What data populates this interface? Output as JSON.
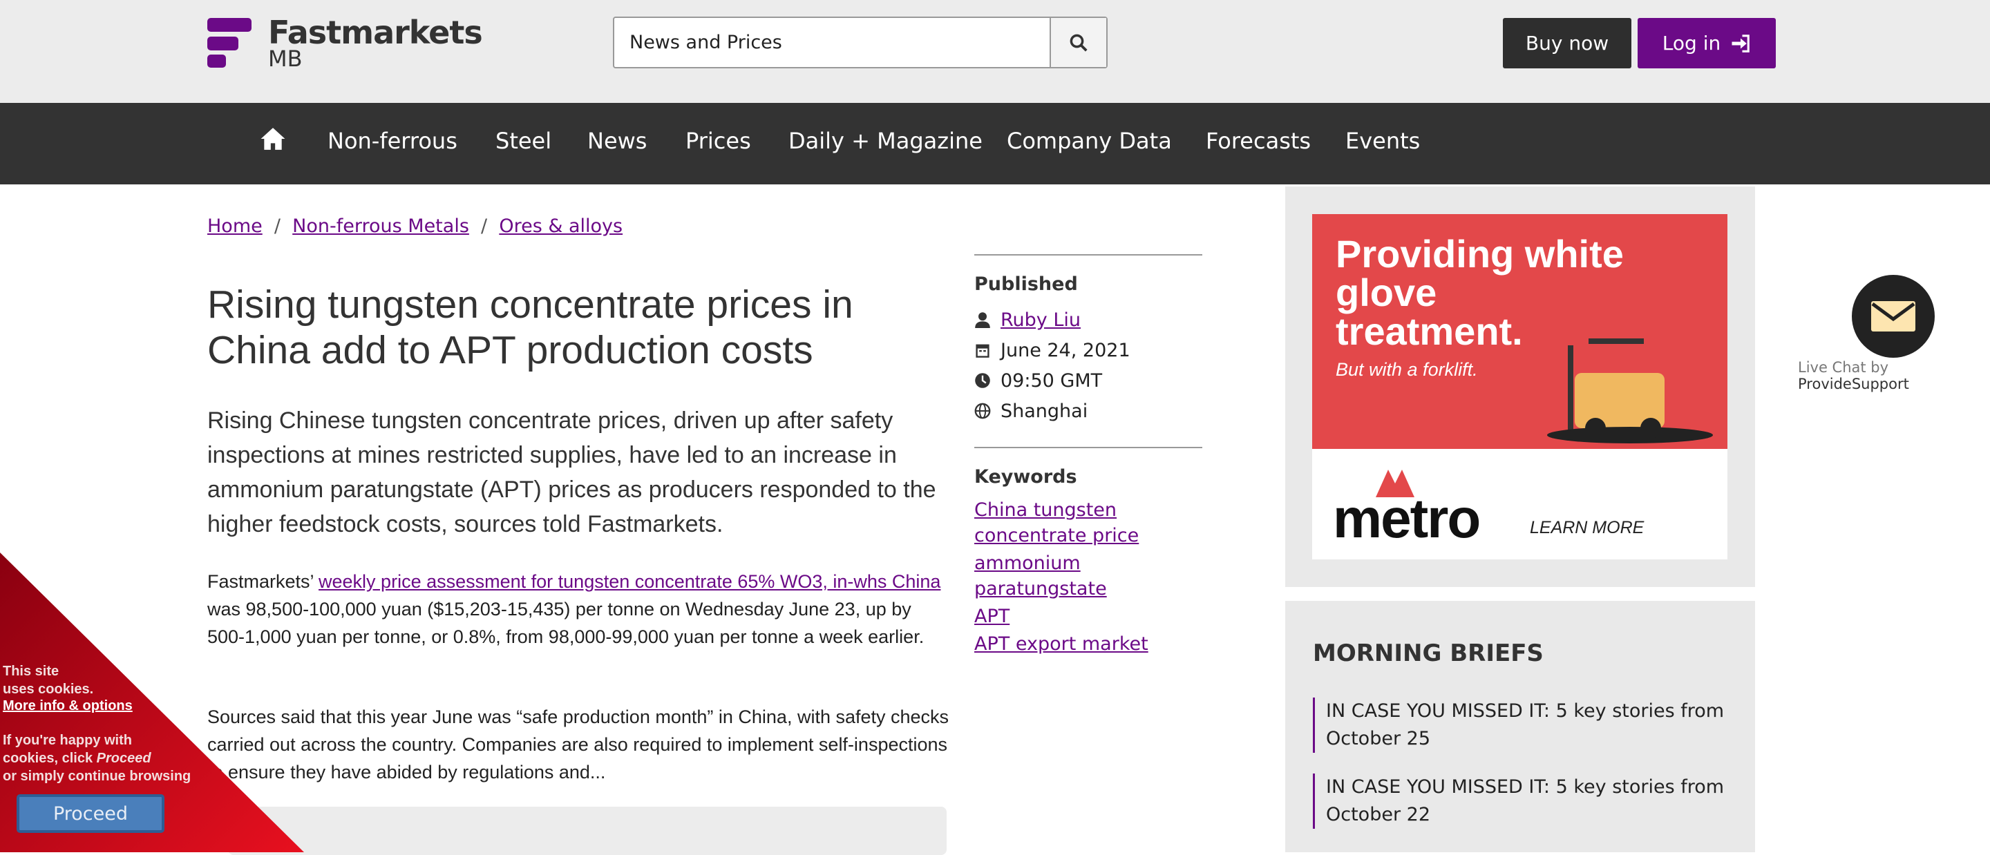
{
  "header": {
    "logo_text": "Fastmarkets",
    "logo_sub": "MB",
    "search_value": "News and Prices",
    "buy_now": "Buy now",
    "log_in": "Log in"
  },
  "nav": {
    "items": [
      "Non-ferrous",
      "Steel",
      "News",
      "Prices",
      "Daily + Magazine",
      "Company Data",
      "Forecasts",
      "Events"
    ]
  },
  "breadcrumb": [
    "Home",
    "Non-ferrous Metals",
    "Ores & alloys"
  ],
  "article": {
    "title": "Rising tungsten concentrate prices in China add to APT production costs",
    "lead": "Rising Chinese tungsten concentrate prices, driven up after safety inspections at mines restricted supplies, have led to an increase in ammonium paratungstate (APT) prices as producers responded to the higher feedstock costs, sources told Fastmarkets.",
    "p1_pre": "Fastmarkets’ ",
    "p1_link": "weekly price assessment for tungsten concentrate 65% WO3, in-whs China",
    "p1_post": " was 98,500-100,000 yuan ($15,203-15,435) per tonne on Wednesday June 23, up by 500-1,000 yuan per tonne, or 0.8%, from 98,000-99,000 yuan per tonne a week earlier.",
    "p2": "Sources said that this year June was “safe production month” in China, with safety checks carried out across the country. Companies are also required to implement self-inspections to ensure they have abided by regulations and..."
  },
  "meta": {
    "published_label": "Published",
    "author": "Ruby Liu",
    "date": "June 24, 2021",
    "time": "09:50 GMT",
    "location": "Shanghai",
    "keywords_label": "Keywords",
    "keywords": [
      "China tungsten concentrate price",
      "ammonium paratungstate",
      "APT",
      "APT export market"
    ]
  },
  "ad": {
    "headline": "Providing white glove treatment.",
    "sub": "But with a forklift.",
    "brand": "metro",
    "cta": "LEARN MORE"
  },
  "morning_briefs": {
    "title": "MORNING BRIEFS",
    "items": [
      "IN CASE YOU MISSED IT: 5 key stories from October 25",
      "IN CASE YOU MISSED IT: 5 key stories from October 22"
    ]
  },
  "live_chat": {
    "label_pre": "Live Chat by ",
    "label_brand": "ProvideSupport"
  },
  "cookie": {
    "l1": "This site",
    "l2": "uses cookies.",
    "link": "More info & options",
    "l3": "If you're happy with",
    "l4a": "cookies, click ",
    "l4b": "Proceed",
    "l5": "or simply continue browsing",
    "proceed": "Proceed"
  },
  "colors": {
    "brand": "#6b0a87",
    "nav_bg": "#333333",
    "ad_red": "#e3484a",
    "cookie_red": "#d0101f"
  }
}
